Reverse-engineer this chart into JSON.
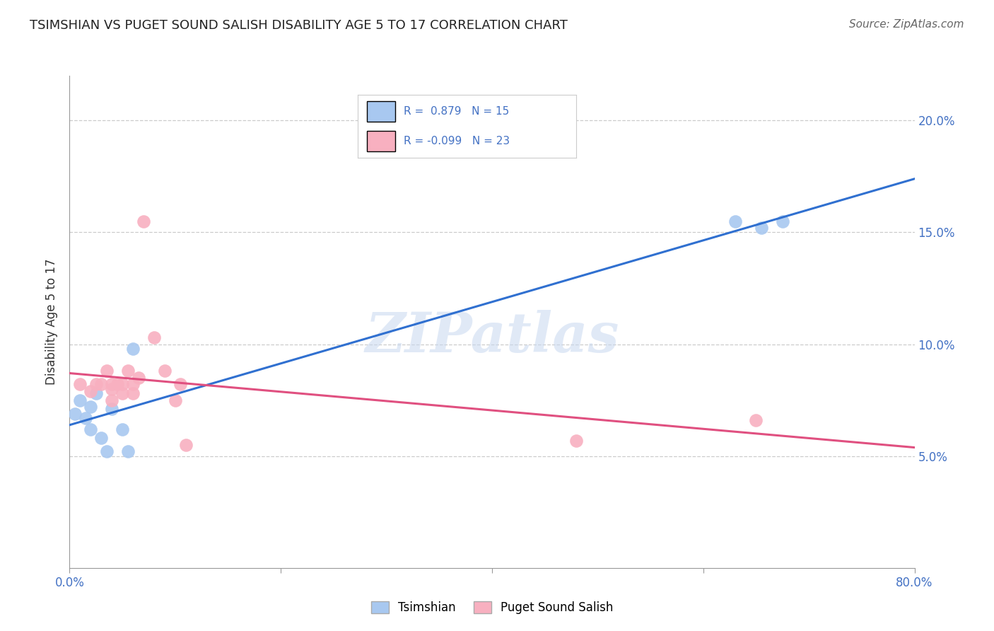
{
  "title": "TSIMSHIAN VS PUGET SOUND SALISH DISABILITY AGE 5 TO 17 CORRELATION CHART",
  "source": "Source: ZipAtlas.com",
  "ylabel_label": "Disability Age 5 to 17",
  "x_min": 0.0,
  "x_max": 0.8,
  "y_min": 0.0,
  "y_max": 0.22,
  "x_ticks": [
    0.0,
    0.2,
    0.4,
    0.6,
    0.8
  ],
  "x_tick_labels": [
    "0.0%",
    "",
    "",
    "",
    "80.0%"
  ],
  "y_ticks": [
    0.05,
    0.1,
    0.15,
    0.2
  ],
  "y_tick_labels": [
    "5.0%",
    "10.0%",
    "15.0%",
    "20.0%"
  ],
  "tsimshian_r": 0.879,
  "tsimshian_n": 15,
  "puget_r": -0.099,
  "puget_n": 23,
  "tsimshian_color": "#a8c8f0",
  "puget_color": "#f8b0c0",
  "tsimshian_line_color": "#3070d0",
  "puget_line_color": "#e05080",
  "watermark_text": "ZIPatlas",
  "tsimshian_x": [
    0.005,
    0.01,
    0.015,
    0.02,
    0.02,
    0.025,
    0.03,
    0.035,
    0.04,
    0.05,
    0.055,
    0.06,
    0.63,
    0.655,
    0.675
  ],
  "tsimshian_y": [
    0.069,
    0.075,
    0.067,
    0.062,
    0.072,
    0.078,
    0.058,
    0.052,
    0.071,
    0.062,
    0.052,
    0.098,
    0.155,
    0.152,
    0.155
  ],
  "puget_x": [
    0.01,
    0.02,
    0.025,
    0.03,
    0.035,
    0.04,
    0.04,
    0.04,
    0.045,
    0.05,
    0.05,
    0.055,
    0.06,
    0.06,
    0.065,
    0.07,
    0.08,
    0.09,
    0.1,
    0.105,
    0.11,
    0.48,
    0.65
  ],
  "puget_y": [
    0.082,
    0.079,
    0.082,
    0.082,
    0.088,
    0.082,
    0.08,
    0.075,
    0.082,
    0.082,
    0.078,
    0.088,
    0.082,
    0.078,
    0.085,
    0.155,
    0.103,
    0.088,
    0.075,
    0.082,
    0.055,
    0.057,
    0.066
  ]
}
